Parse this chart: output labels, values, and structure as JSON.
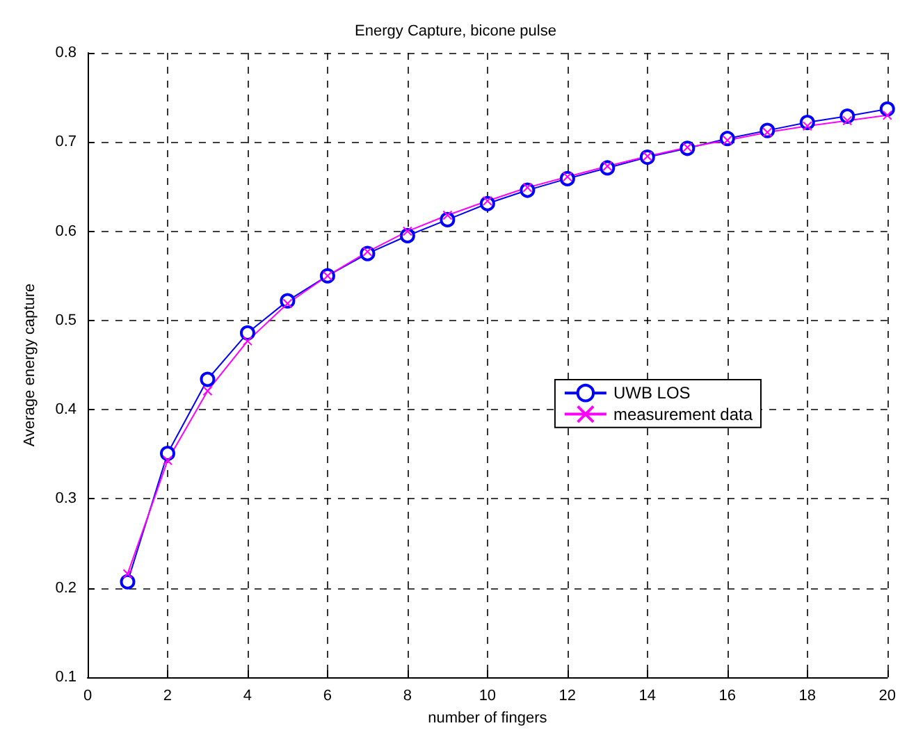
{
  "chart_data": {
    "type": "line",
    "title": "Energy Capture, bicone pulse",
    "xlabel": "number of fingers",
    "ylabel": "Average energy capture",
    "x": [
      1,
      2,
      3,
      4,
      5,
      6,
      7,
      8,
      9,
      10,
      11,
      12,
      13,
      14,
      15,
      16,
      17,
      18,
      19,
      20
    ],
    "series": [
      {
        "name": "UWB LOS",
        "color": "#0000ff",
        "marker": "circle",
        "values": [
          0.207,
          0.351,
          0.434,
          0.486,
          0.522,
          0.55,
          0.575,
          0.595,
          0.613,
          0.631,
          0.646,
          0.659,
          0.671,
          0.683,
          0.693,
          0.704,
          0.713,
          0.722,
          0.729,
          0.737
        ]
      },
      {
        "name": "measurement data",
        "color": "#ff00ff",
        "marker": "cross",
        "values": [
          0.216,
          0.343,
          0.421,
          0.477,
          0.519,
          0.55,
          0.577,
          0.6,
          0.618,
          0.634,
          0.649,
          0.661,
          0.673,
          0.684,
          0.694,
          0.702,
          0.711,
          0.718,
          0.724,
          0.73
        ]
      }
    ],
    "xlim": [
      0,
      20
    ],
    "xticks": [
      0,
      2,
      4,
      6,
      8,
      10,
      12,
      14,
      16,
      18,
      20
    ],
    "ylim": [
      0.1,
      0.8
    ],
    "yticks": [
      0.1,
      0.2,
      0.3,
      0.4,
      0.5,
      0.6,
      0.7,
      0.8
    ],
    "grid": true,
    "legend": "right",
    "line_style": "solid"
  }
}
